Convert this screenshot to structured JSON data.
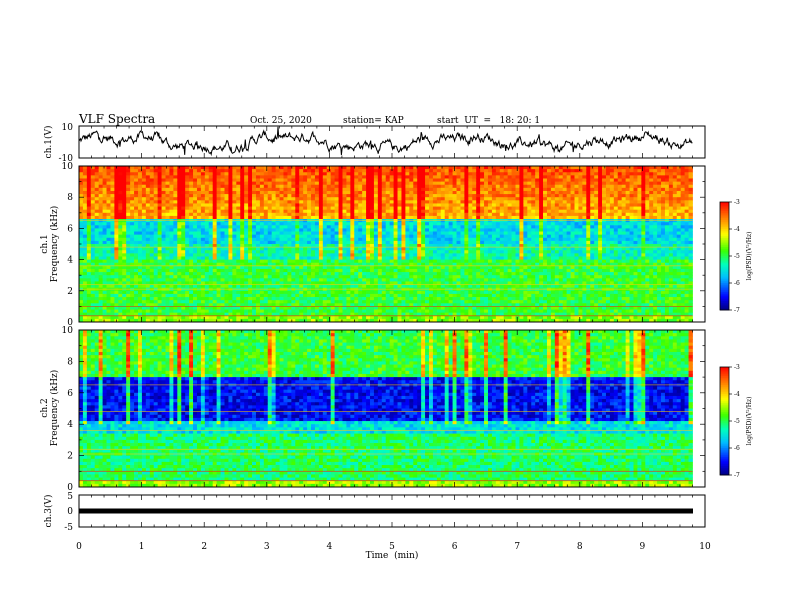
{
  "header": {
    "title": "VLF Spectra",
    "date": "Oct. 25, 2020",
    "station": "station= KAP",
    "start": "start  UT  =   18: 20: 1"
  },
  "chart_data": [
    {
      "type": "line",
      "panel": "ch1-waveform",
      "ylabel": "ch.1(V)",
      "ylim": [
        -10,
        10
      ],
      "y_ticks": [
        "10",
        "-10"
      ],
      "xlim": [
        0,
        10
      ],
      "x_extent_min": 9.8,
      "series": [
        {
          "values_approx_range": [
            -6,
            6
          ]
        }
      ]
    },
    {
      "type": "heatmap",
      "panel": "ch1-spectrogram",
      "ylabel": "ch.1\nFrequency (kHz)",
      "ylim": [
        0,
        10
      ],
      "y_ticks": [
        "0",
        "2",
        "4",
        "6",
        "8",
        "10"
      ],
      "xlim": [
        0,
        10
      ],
      "colorbar": {
        "label": "log(PSD)(V²/Hz)",
        "range": [
          -7,
          -3
        ],
        "ticks": [
          "-3",
          "-4",
          "-5",
          "-6",
          "-7"
        ]
      }
    },
    {
      "type": "heatmap",
      "panel": "ch2-spectrogram",
      "ylabel": "ch.2\nFrequency (kHz)",
      "ylim": [
        0,
        10
      ],
      "y_ticks": [
        "0",
        "2",
        "4",
        "6",
        "8",
        "10"
      ],
      "xlim": [
        0,
        10
      ],
      "colorbar": {
        "label": "log(PSD)(V²/Hz)",
        "range": [
          -7,
          -3
        ],
        "ticks": [
          "-3",
          "-4",
          "-5",
          "-6",
          "-7"
        ]
      }
    },
    {
      "type": "line",
      "panel": "ch3-waveform",
      "ylabel": "ch.3(V)",
      "ylim": [
        -5,
        5
      ],
      "y_ticks": [
        "5",
        "0",
        "-5"
      ],
      "xlim": [
        0,
        10
      ],
      "series": [
        {
          "values_approx": 0
        }
      ]
    }
  ],
  "x_axis": {
    "label": "Time  (min)",
    "ticks": [
      "0",
      "1",
      "2",
      "3",
      "4",
      "5",
      "6",
      "7",
      "8",
      "9",
      "10"
    ]
  },
  "colors": {
    "scale": [
      "#00007f",
      "#0000ff",
      "#00bfff",
      "#00ffbf",
      "#40ff00",
      "#ffff00",
      "#ff8000",
      "#ff0000",
      "#ffffff"
    ]
  }
}
